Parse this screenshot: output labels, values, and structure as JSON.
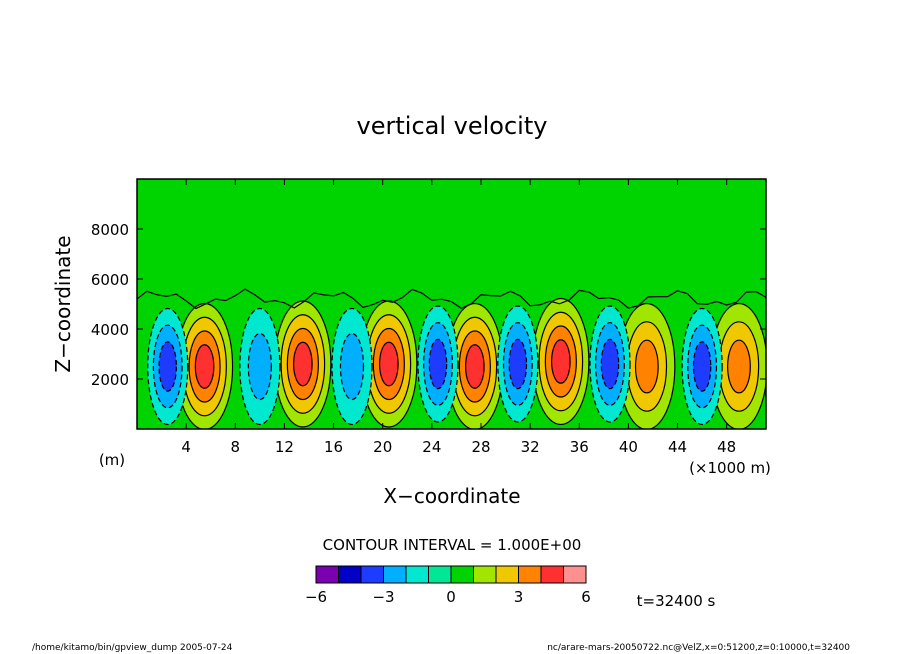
{
  "chart_data": {
    "type": "heatmap",
    "title": "vertical velocity",
    "xlabel": "X−coordinate",
    "ylabel": "Z−coordinate",
    "x_unit_label": "(m)",
    "x_scale_label": "(×1000 m)",
    "x_ticks": [
      4,
      8,
      12,
      16,
      20,
      24,
      28,
      32,
      36,
      40,
      44,
      48
    ],
    "x_tick_labels": [
      "4",
      "8",
      "12",
      "16",
      "20",
      "24",
      "28",
      "32",
      "36",
      "40",
      "44",
      "48"
    ],
    "xlim": [
      0,
      51.2
    ],
    "y_ticks": [
      2000,
      4000,
      6000,
      8000
    ],
    "y_tick_labels": [
      "2000",
      "4000",
      "6000",
      "8000"
    ],
    "ylim": [
      0,
      10000
    ],
    "contour_interval_label": "CONTOUR INTERVAL = 1.000E+00",
    "contour_interval": 1.0,
    "colorbar": {
      "levels": [
        -6,
        -5,
        -4,
        -3,
        -2,
        -1,
        0,
        1,
        2,
        3,
        4,
        5,
        6
      ],
      "tick_labels": [
        "−6",
        "−3",
        "0",
        "3",
        "6"
      ],
      "tick_values": [
        -6,
        -3,
        0,
        3,
        6
      ],
      "colors": [
        "#7a00b0",
        "#0000c8",
        "#1e3cff",
        "#00b0ff",
        "#00e8d0",
        "#00e896",
        "#00d400",
        "#a0e600",
        "#f0c800",
        "#ff8200",
        "#ff3030",
        "#ff9090"
      ]
    },
    "updrafts": [
      {
        "x": 5.5,
        "z": 2500,
        "peak": 4
      },
      {
        "x": 13.5,
        "z": 2600,
        "peak": 4
      },
      {
        "x": 20.5,
        "z": 2600,
        "peak": 4
      },
      {
        "x": 27.5,
        "z": 2500,
        "peak": 4
      },
      {
        "x": 34.5,
        "z": 2700,
        "peak": 4
      },
      {
        "x": 41.5,
        "z": 2500,
        "peak": 3
      },
      {
        "x": 49.0,
        "z": 2500,
        "peak": 3
      }
    ],
    "downdrafts": [
      {
        "x": 2.5,
        "z": 2500,
        "peak": -3
      },
      {
        "x": 10.0,
        "z": 2500,
        "peak": -2
      },
      {
        "x": 17.5,
        "z": 2500,
        "peak": -2
      },
      {
        "x": 24.5,
        "z": 2600,
        "peak": -3
      },
      {
        "x": 31.0,
        "z": 2600,
        "peak": -3
      },
      {
        "x": 38.5,
        "z": 2600,
        "peak": -3
      },
      {
        "x": 46.0,
        "z": 2500,
        "peak": -3
      }
    ],
    "time_label": "t=32400 s"
  },
  "footer": {
    "left": "/home/kitamo/bin/gpview_dump  2005-07-24",
    "right": "nc/arare-mars-20050722.nc@VelZ,x=0:51200,z=0:10000,t=32400"
  }
}
